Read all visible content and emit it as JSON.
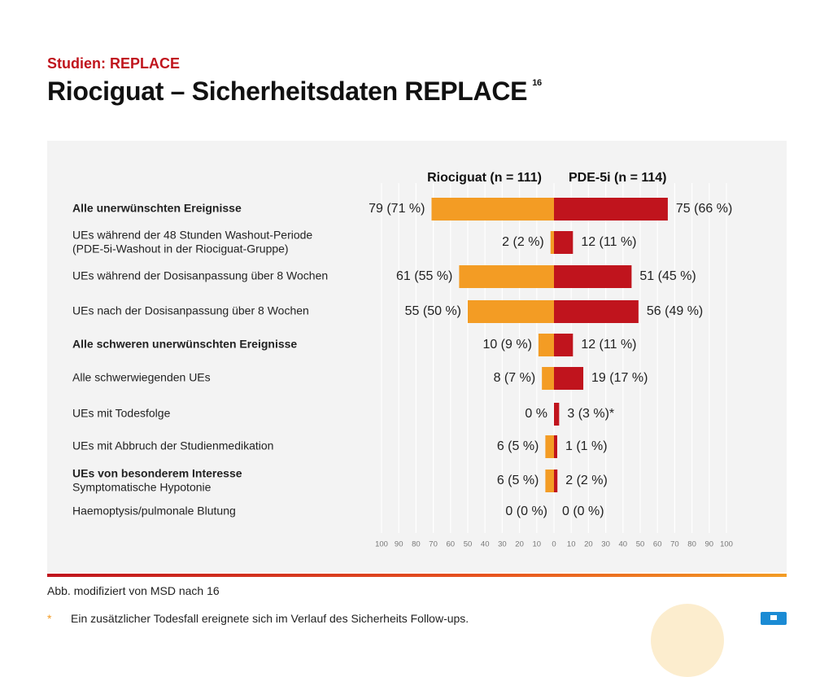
{
  "header": {
    "section": "Studien: REPLACE",
    "title": "Riociguat – Sicherheitsdaten REPLACE",
    "title_ref": "16"
  },
  "chart_data": {
    "type": "bar",
    "orientation": "horizontal-diverging",
    "series": [
      {
        "name": "Riociguat (n = 111)",
        "side": "left",
        "color": "#f39c24"
      },
      {
        "name": "PDE-5i (n = 114)",
        "side": "right",
        "color": "#c0141d"
      }
    ],
    "rows": [
      {
        "label": [
          "Alle unerwünschten Ereignisse"
        ],
        "bold": [
          true
        ],
        "left": 71,
        "right": 66,
        "left_label": "79 (71 %)",
        "right_label": "75 (66 %)"
      },
      {
        "label": [
          "UEs während der 48 Stunden Washout-Periode",
          "(PDE-5i-Washout in der Riociguat-Gruppe)"
        ],
        "bold": [
          false,
          false
        ],
        "left": 2,
        "right": 11,
        "left_label": "2 (2 %)",
        "right_label": "12 (11 %)"
      },
      {
        "label": [
          "UEs während der Dosisanpassung über 8 Wochen"
        ],
        "bold": [
          false
        ],
        "left": 55,
        "right": 45,
        "left_label": "61 (55 %)",
        "right_label": "51 (45 %)"
      },
      {
        "label": [
          "UEs nach der Dosisanpassung über 8 Wochen"
        ],
        "bold": [
          false
        ],
        "left": 50,
        "right": 49,
        "left_label": "55 (50 %)",
        "right_label": "56 (49 %)"
      },
      {
        "label": [
          "Alle schweren unerwünschten Ereignisse"
        ],
        "bold": [
          true
        ],
        "left": 9,
        "right": 11,
        "left_label": "10 (9 %)",
        "right_label": "12 (11 %)"
      },
      {
        "label": [
          "Alle schwerwiegenden UEs"
        ],
        "bold": [
          false
        ],
        "left": 7,
        "right": 17,
        "left_label": "8 (7 %)",
        "right_label": "19 (17 %)"
      },
      {
        "label": [
          "UEs mit Todesfolge"
        ],
        "bold": [
          false
        ],
        "left": 0,
        "right": 3,
        "left_label": "0 %",
        "right_label": "3 (3 %)*"
      },
      {
        "label": [
          "UEs mit Abbruch der Studienmedikation"
        ],
        "bold": [
          false
        ],
        "left": 5,
        "right": 1,
        "left_label": "6 (5 %)",
        "right_label": "1 (1 %)"
      },
      {
        "label": [
          "UEs von besonderem Interesse",
          "Symptomatische Hypotonie"
        ],
        "bold": [
          true,
          false
        ],
        "left": 5,
        "right": 2,
        "left_label": "6 (5 %)",
        "right_label": "2 (2 %)"
      },
      {
        "label": [
          "Haemoptysis/pulmonale Blutung"
        ],
        "bold": [
          false
        ],
        "left": 0,
        "right": 0,
        "left_label": "0 (0 %)",
        "right_label": "0 (0 %)"
      }
    ],
    "axis_ticks": [
      100,
      90,
      80,
      70,
      60,
      50,
      40,
      30,
      20,
      10,
      0,
      10,
      20,
      30,
      40,
      50,
      60,
      70,
      80,
      90,
      100
    ],
    "xlim": [
      -100,
      100
    ],
    "grid": true
  },
  "footer": {
    "caption": "Abb. modifiziert von MSD nach 16",
    "footnote_marker": "*",
    "footnote_text": "Ein zusätzlicher Todesfall ereignete sich im Verlauf des Sicherheits Follow-ups."
  }
}
